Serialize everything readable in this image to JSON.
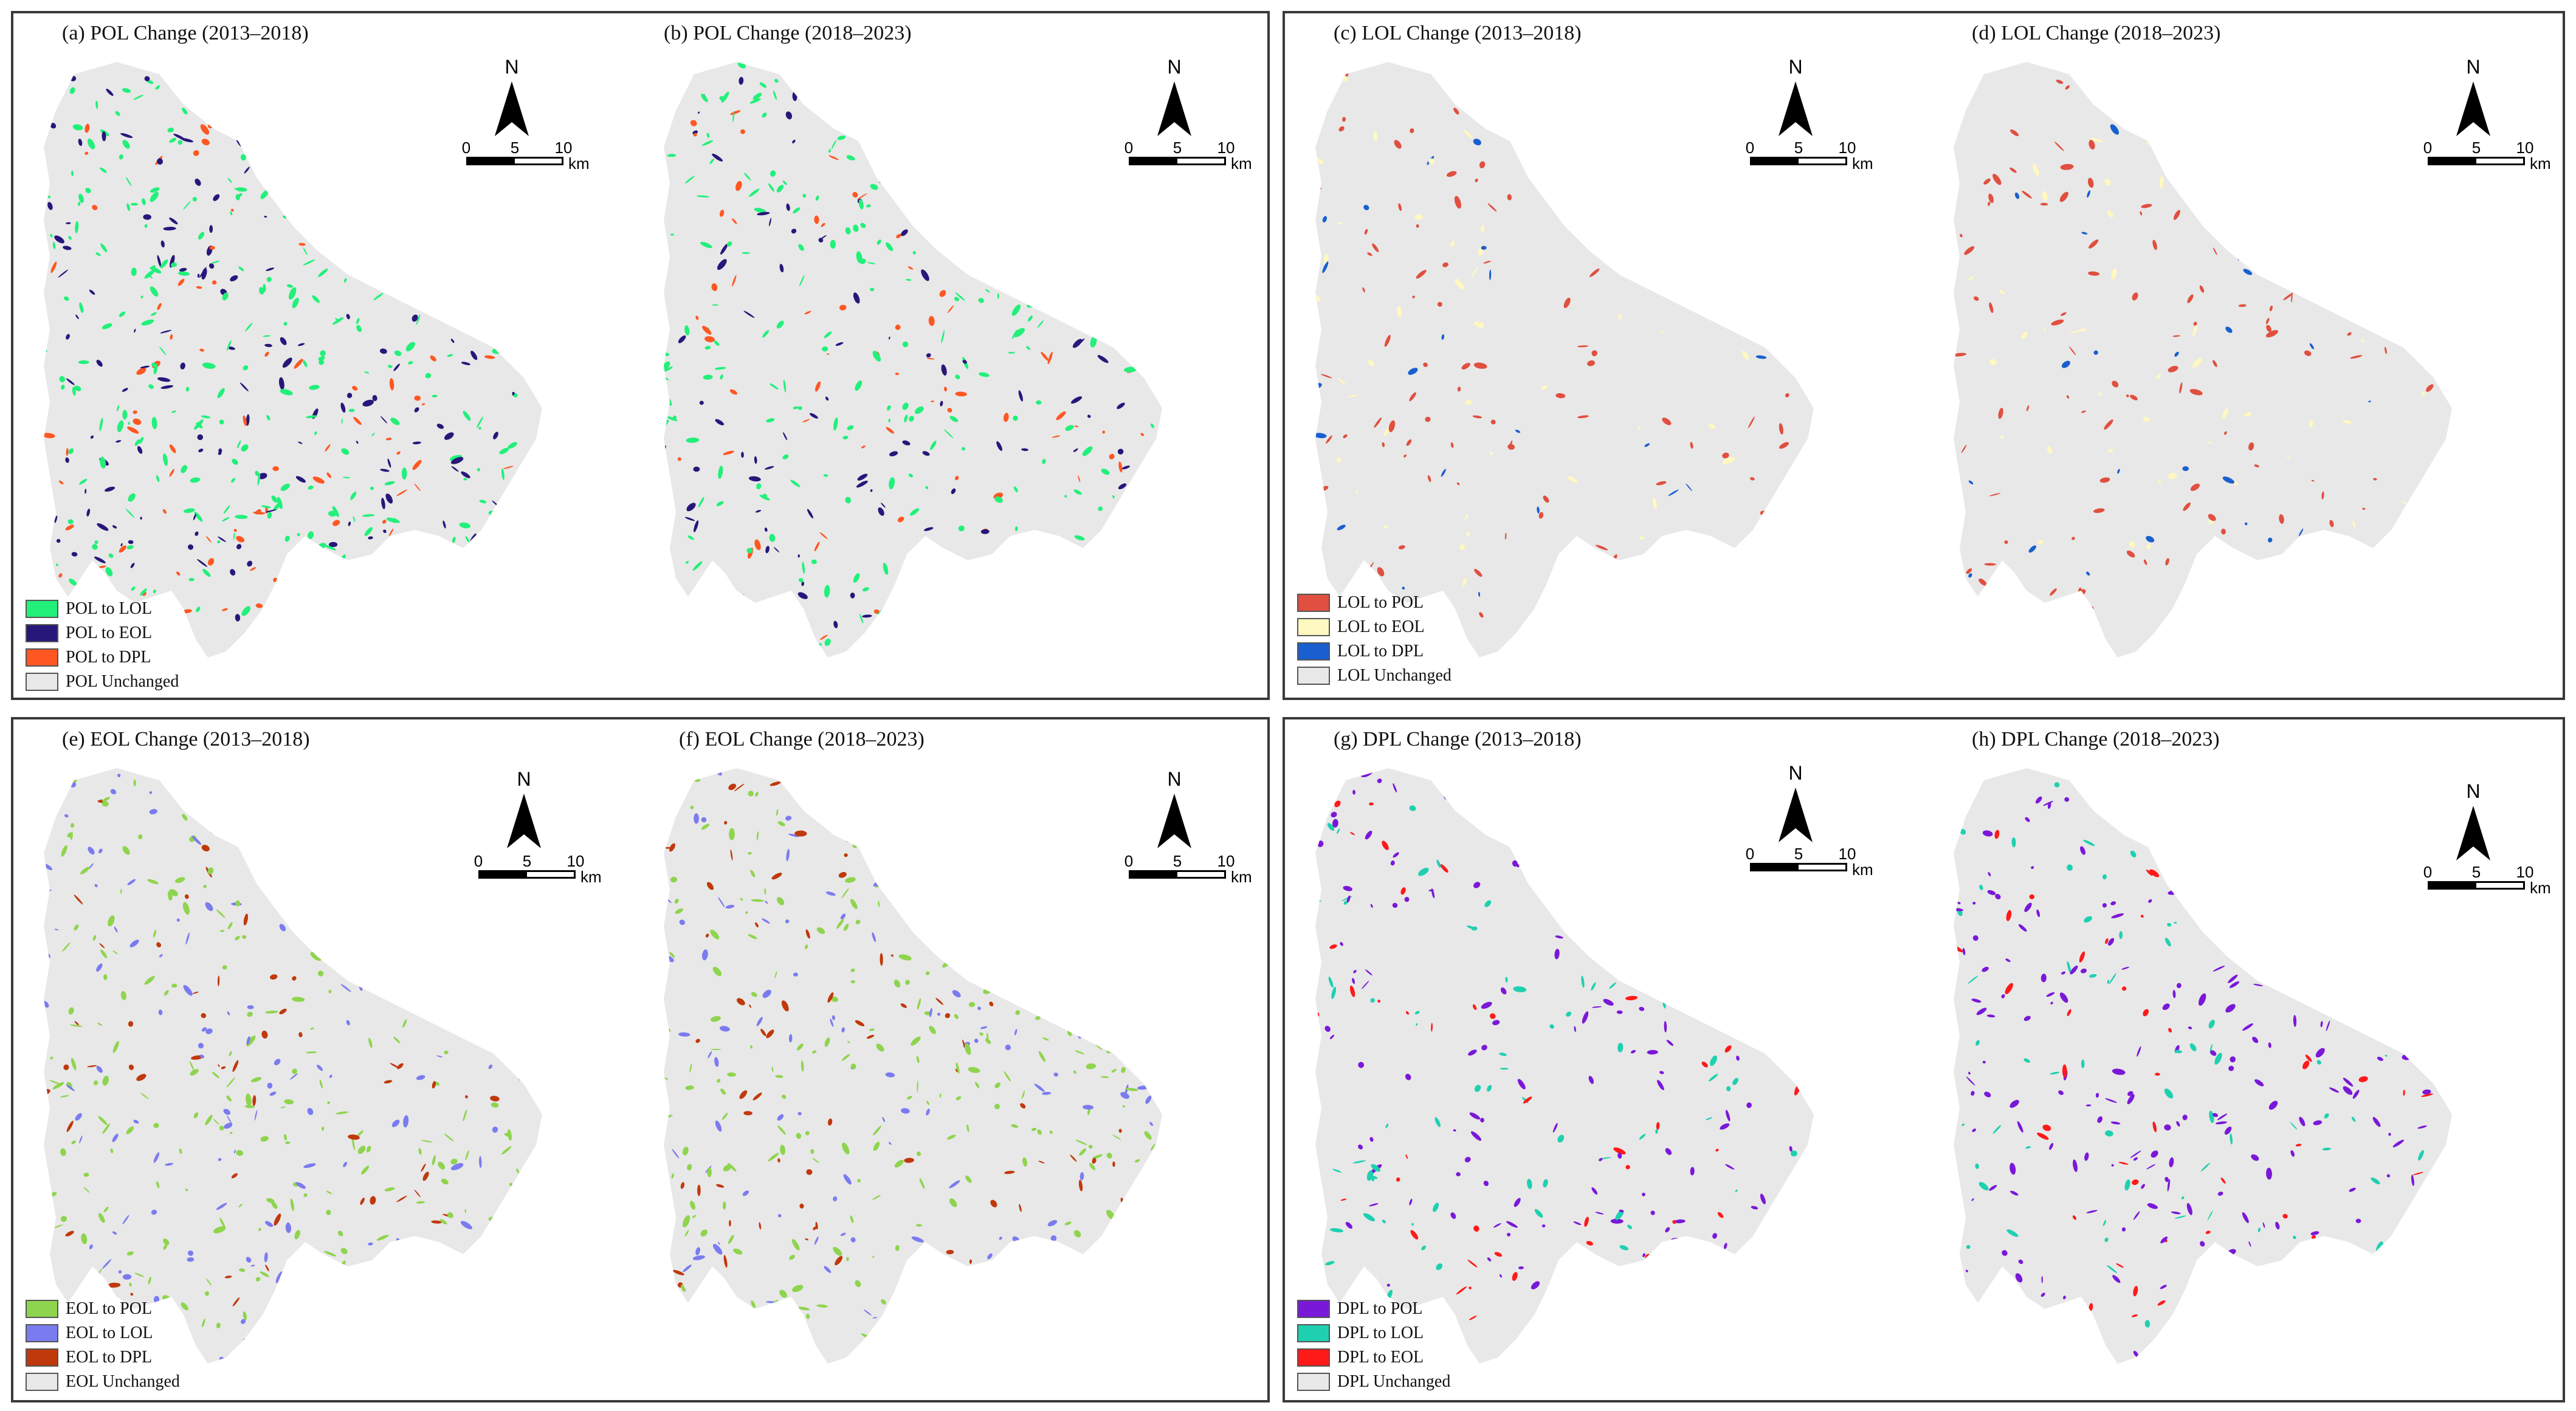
{
  "north_label": "N",
  "scale": {
    "ticks": [
      "0",
      "5",
      "10"
    ],
    "unit": "km"
  },
  "groups": [
    {
      "maps": [
        {
          "id": "a",
          "title": "(a) POL Change (2013–2018)"
        },
        {
          "id": "b",
          "title": "(b) POL Change (2018–2023)"
        }
      ],
      "legend": [
        {
          "label": "POL to LOL",
          "color": "#22f07a"
        },
        {
          "label": "POL to EOL",
          "color": "#28177a"
        },
        {
          "label": "POL to DPL",
          "color": "#ff5722"
        },
        {
          "label": "POL Unchanged",
          "color": "#e8e8e8"
        }
      ]
    },
    {
      "maps": [
        {
          "id": "c",
          "title": "(c) LOL Change (2013–2018)"
        },
        {
          "id": "d",
          "title": "(d) LOL Change (2018–2023)"
        }
      ],
      "legend": [
        {
          "label": "LOL to POL",
          "color": "#e04f3f"
        },
        {
          "label": "LOL to EOL",
          "color": "#fff8c0"
        },
        {
          "label": "LOL to DPL",
          "color": "#1a5fd0"
        },
        {
          "label": "LOL Unchanged",
          "color": "#e8e8e8"
        }
      ]
    },
    {
      "maps": [
        {
          "id": "e",
          "title": "(e) EOL Change (2013–2018)"
        },
        {
          "id": "f",
          "title": "(f) EOL Change (2018–2023)"
        }
      ],
      "legend": [
        {
          "label": "EOL to POL",
          "color": "#8fd44e"
        },
        {
          "label": "EOL to LOL",
          "color": "#7b7bf0"
        },
        {
          "label": "EOL to DPL",
          "color": "#c0390c"
        },
        {
          "label": "EOL Unchanged",
          "color": "#e8e8e8"
        }
      ]
    },
    {
      "maps": [
        {
          "id": "g",
          "title": "(g) DPL Change (2013–2018)"
        },
        {
          "id": "h",
          "title": "(h) DPL Change (2018–2023)"
        }
      ],
      "legend": [
        {
          "label": "DPL to POL",
          "color": "#7a18d8"
        },
        {
          "label": "DPL to LOL",
          "color": "#1fd0b0"
        },
        {
          "label": "DPL to EOL",
          "color": "#ff1a1a"
        },
        {
          "label": "DPL Unchanged",
          "color": "#e8e8e8"
        }
      ]
    }
  ]
}
